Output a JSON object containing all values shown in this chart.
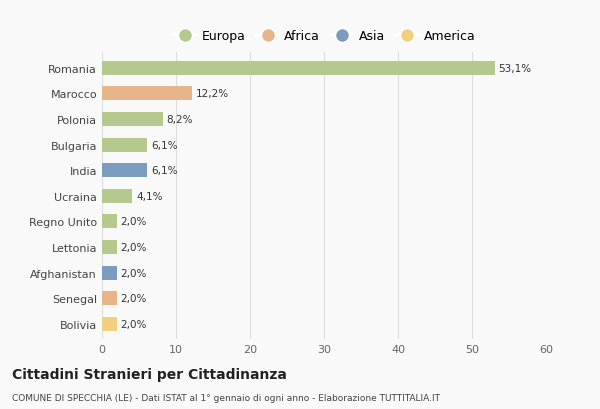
{
  "categories": [
    "Romania",
    "Marocco",
    "Polonia",
    "Bulgaria",
    "India",
    "Ucraina",
    "Regno Unito",
    "Lettonia",
    "Afghanistan",
    "Senegal",
    "Bolivia"
  ],
  "values": [
    53.1,
    12.2,
    8.2,
    6.1,
    6.1,
    4.1,
    2.0,
    2.0,
    2.0,
    2.0,
    2.0
  ],
  "labels": [
    "53,1%",
    "12,2%",
    "8,2%",
    "6,1%",
    "6,1%",
    "4,1%",
    "2,0%",
    "2,0%",
    "2,0%",
    "2,0%",
    "2,0%"
  ],
  "colors": [
    "#b5c98e",
    "#e8b48a",
    "#b5c98e",
    "#b5c98e",
    "#7b9bbf",
    "#b5c98e",
    "#b5c98e",
    "#b5c98e",
    "#7b9bbf",
    "#e8b48a",
    "#f0d080"
  ],
  "legend_labels": [
    "Europa",
    "Africa",
    "Asia",
    "America"
  ],
  "legend_colors": [
    "#b5c98e",
    "#e8b48a",
    "#7b9bbf",
    "#f0d080"
  ],
  "title": "Cittadini Stranieri per Cittadinanza",
  "subtitle": "COMUNE DI SPECCHIA (LE) - Dati ISTAT al 1° gennaio di ogni anno - Elaborazione TUTTITALIA.IT",
  "xlim": [
    0,
    60
  ],
  "xticks": [
    0,
    10,
    20,
    30,
    40,
    50,
    60
  ],
  "background_color": "#f9f9f9",
  "grid_color": "#dddddd"
}
